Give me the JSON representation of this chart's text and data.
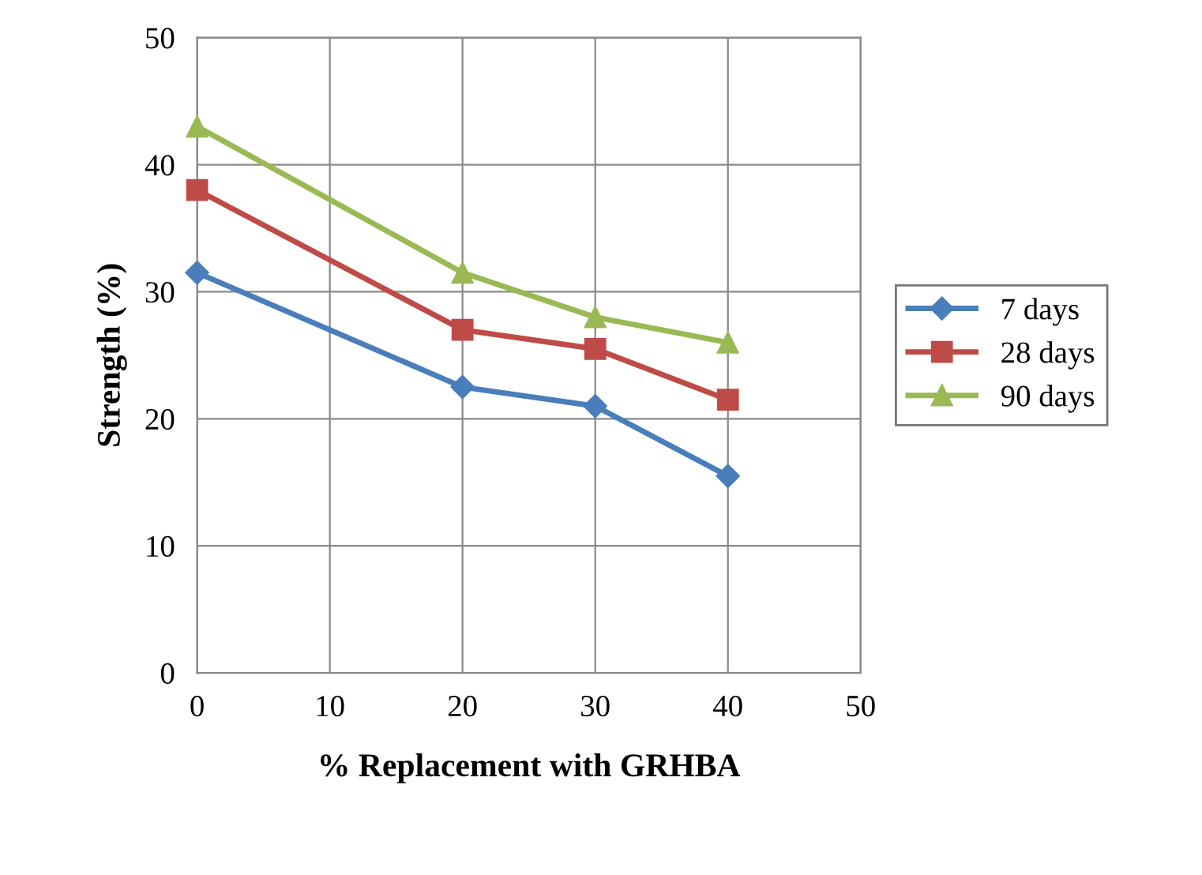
{
  "chart_data": {
    "type": "line",
    "xlabel": "% Replacement with GRHBA",
    "ylabel": "Strength (%)",
    "x": [
      0,
      20,
      30,
      40
    ],
    "series": [
      {
        "name": "7 days",
        "color": "#4a7ebb",
        "marker": "diamond",
        "values": [
          31.5,
          22.5,
          21,
          15.5
        ]
      },
      {
        "name": "28 days",
        "color": "#be4b48",
        "marker": "square",
        "values": [
          38,
          27,
          25.5,
          21.5
        ]
      },
      {
        "name": "90 days",
        "color": "#98b954",
        "marker": "triangle",
        "values": [
          43,
          31.5,
          28,
          26
        ]
      }
    ],
    "xlim": [
      0,
      50
    ],
    "xticks": [
      0,
      10,
      20,
      30,
      40,
      50
    ],
    "ylim": [
      0,
      50
    ],
    "yticks": [
      0,
      10,
      20,
      30,
      40,
      50
    ],
    "grid": true,
    "legend": "right",
    "line_style": "solid"
  }
}
